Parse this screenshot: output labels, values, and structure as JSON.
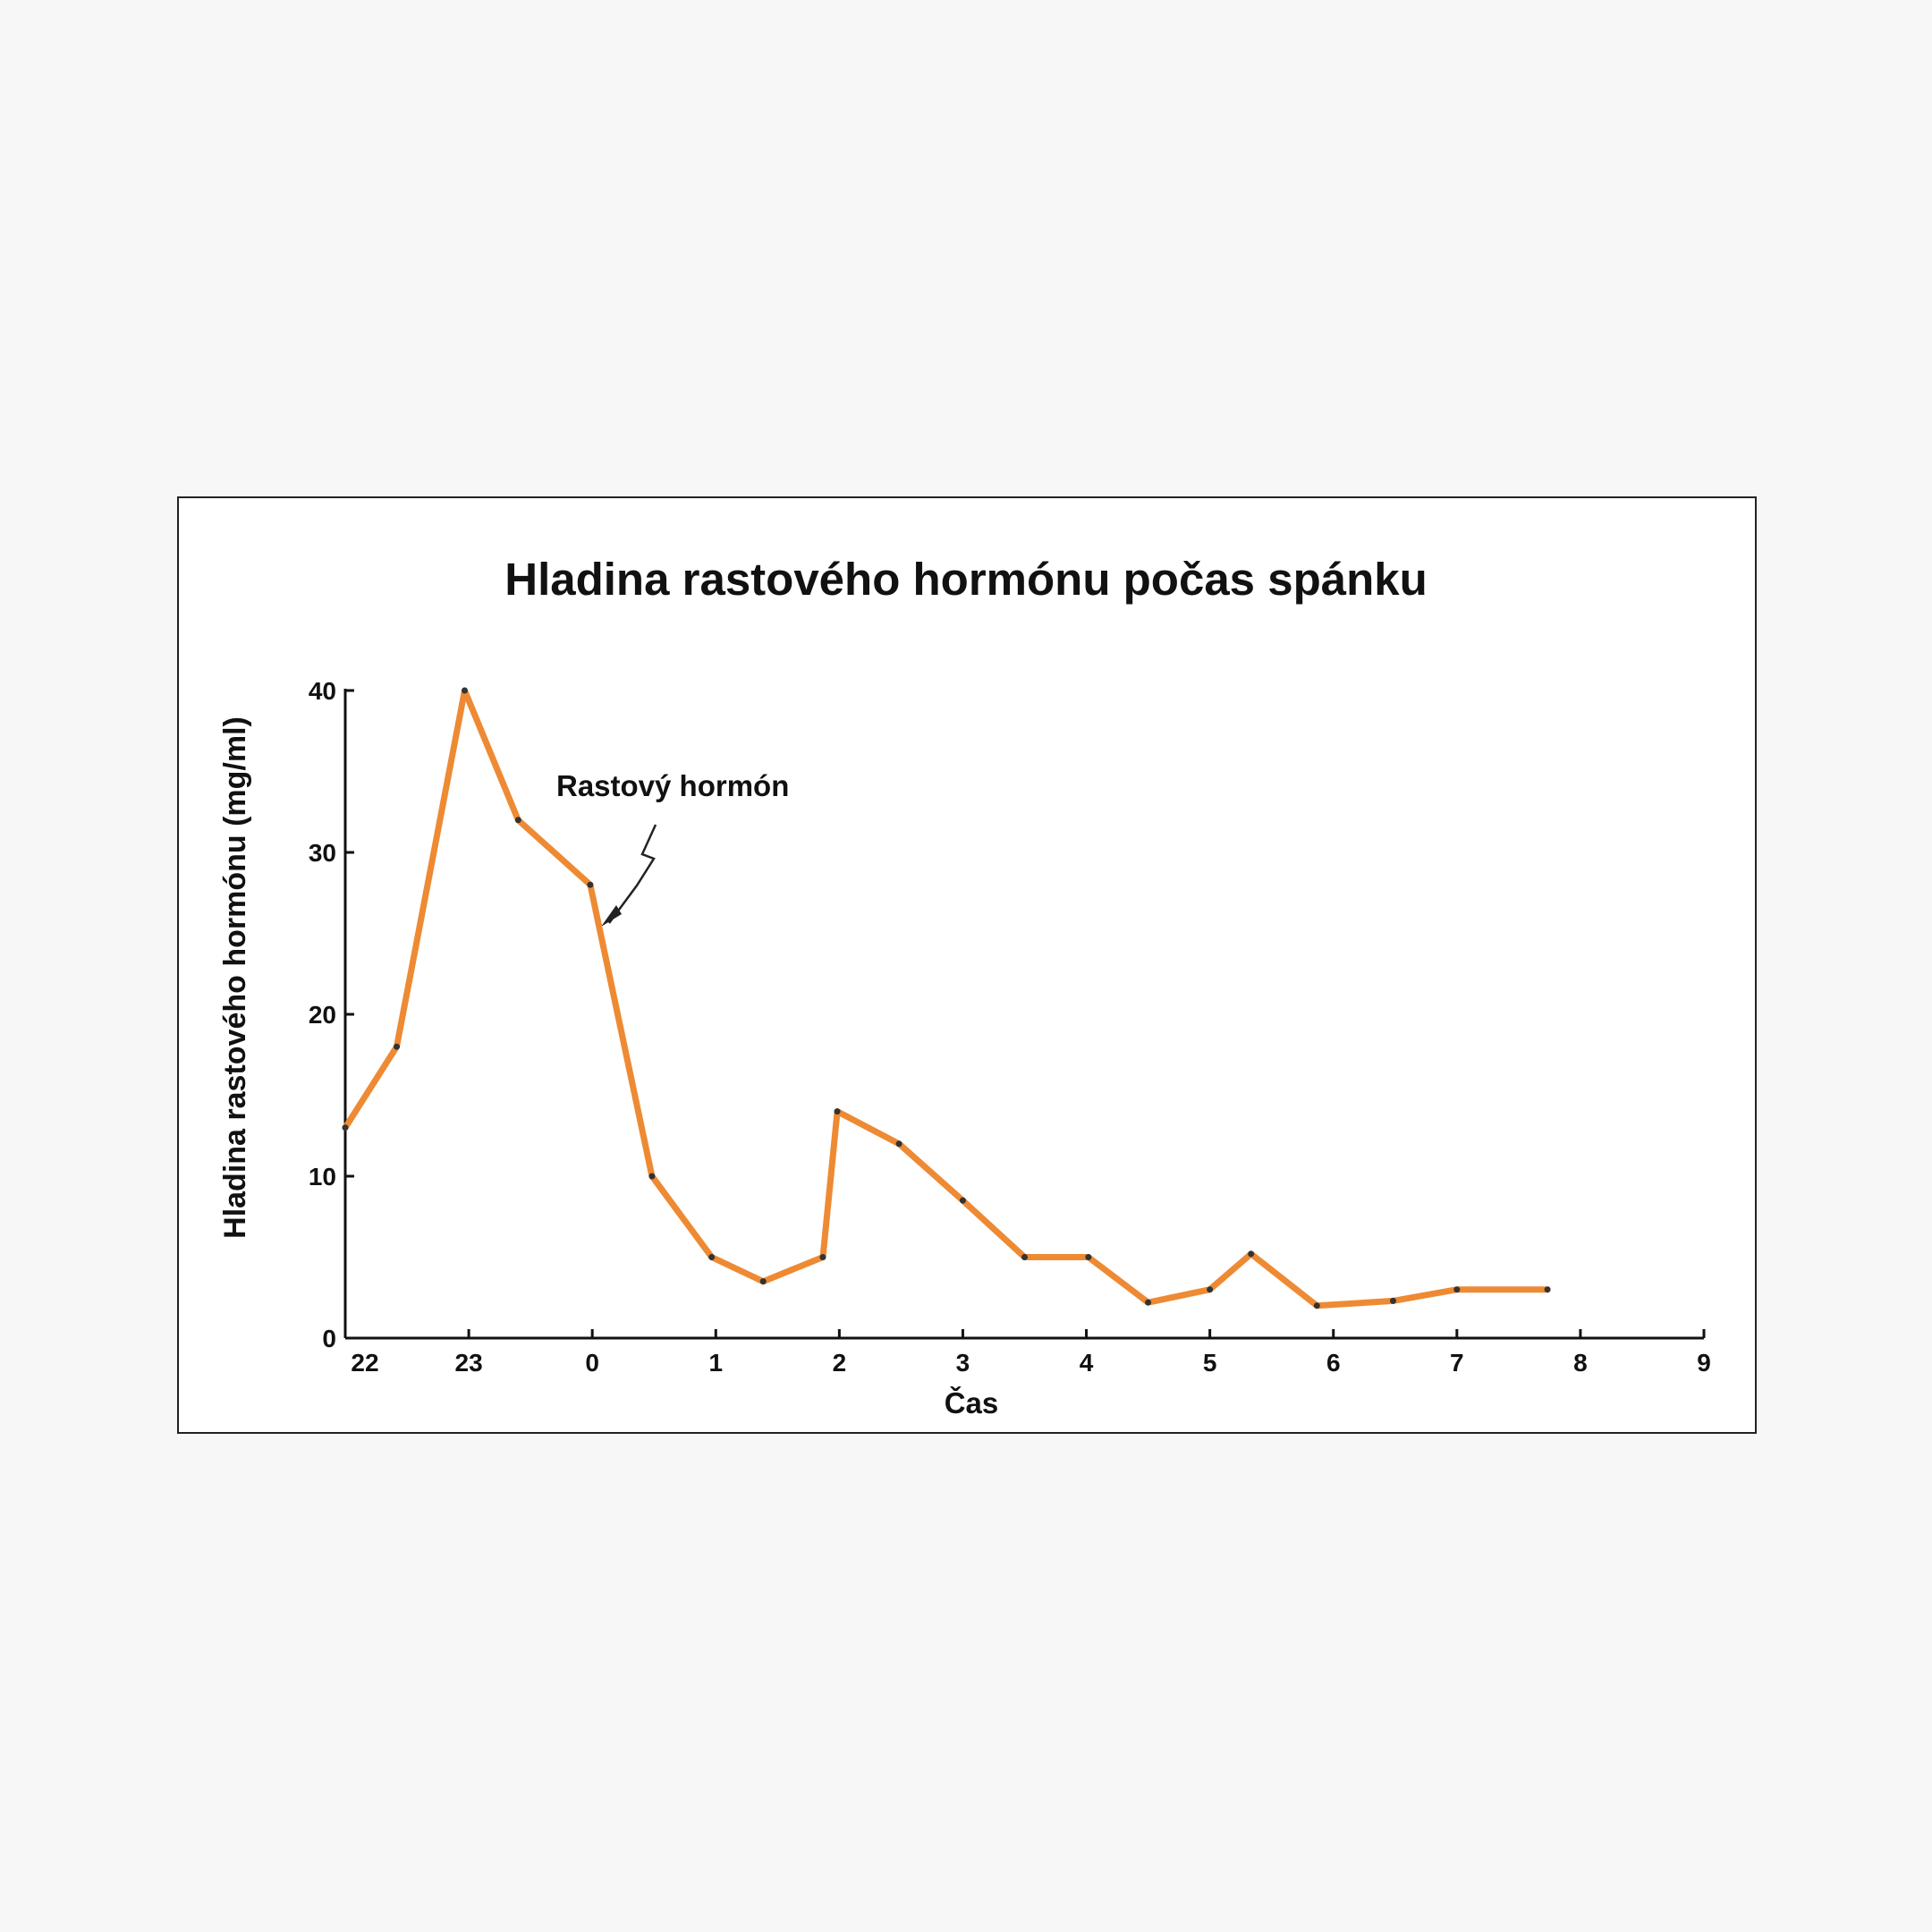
{
  "colors": {
    "background": "#f7f7f7",
    "panel": "#ffffff",
    "line": "#ee8a33",
    "ink": "#111111"
  },
  "chart_data": {
    "type": "line",
    "title": "Hladina rastového hormónu počas spánku",
    "xlabel": "Čas",
    "ylabel": "Hladina rastového hormónu (mg/ml)",
    "annotation": "Rastový hormón",
    "x_ticks": [
      "22",
      "23",
      "0",
      "1",
      "2",
      "3",
      "4",
      "5",
      "6",
      "7",
      "8",
      "9"
    ],
    "y_ticks": [
      "0",
      "10",
      "20",
      "30",
      "40"
    ],
    "xlim": [
      "22",
      "9"
    ],
    "ylim": [
      0,
      40
    ],
    "grid": false,
    "legend": "none",
    "series": [
      {
        "x": [
          "22:00",
          "22:25",
          "22:58",
          "23:24",
          "23:59",
          "00:29",
          "00:58",
          "01:23",
          "01:52",
          "01:59",
          "02:29",
          "03:00",
          "03:30",
          "04:01",
          "04:30",
          "05:00",
          "05:20",
          "05:52",
          "06:29",
          "07:00",
          "07:44"
        ],
        "values": [
          13,
          18,
          40,
          32,
          28,
          10,
          5,
          3.5,
          5,
          14,
          12,
          8.5,
          5,
          5,
          2.2,
          3,
          5.2,
          2,
          2.3,
          3,
          3
        ]
      }
    ]
  }
}
